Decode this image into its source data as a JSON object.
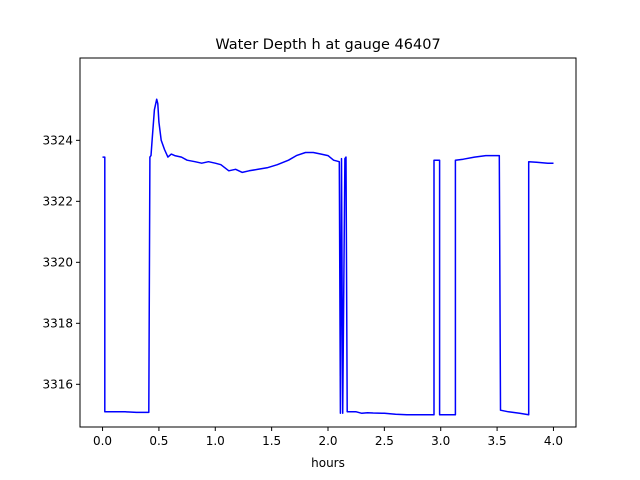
{
  "chart_data": {
    "type": "line",
    "title": "Water Depth h at gauge 46407",
    "xlabel": "hours",
    "ylabel": "",
    "xlim": [
      -0.2,
      4.2
    ],
    "ylim": [
      3314.6,
      3326.7
    ],
    "xticks": [
      0.0,
      0.5,
      1.0,
      1.5,
      2.0,
      2.5,
      3.0,
      3.5,
      4.0
    ],
    "xtick_labels": [
      "0.0",
      "0.5",
      "1.0",
      "1.5",
      "2.0",
      "2.5",
      "3.0",
      "3.5",
      "4.0"
    ],
    "yticks": [
      3316,
      3318,
      3320,
      3322,
      3324
    ],
    "ytick_labels": [
      "3316",
      "3318",
      "3320",
      "3322",
      "3324"
    ],
    "grid": false,
    "legend": "none",
    "series": [
      {
        "color": "#0000ff",
        "x": [
          0.0,
          0.02,
          0.02,
          0.1,
          0.2,
          0.3,
          0.35,
          0.41,
          0.42,
          0.43,
          0.44,
          0.46,
          0.48,
          0.49,
          0.5,
          0.52,
          0.55,
          0.58,
          0.61,
          0.64,
          0.7,
          0.75,
          0.82,
          0.88,
          0.94,
          1.0,
          1.05,
          1.12,
          1.18,
          1.24,
          1.3,
          1.38,
          1.46,
          1.55,
          1.65,
          1.72,
          1.8,
          1.87,
          1.94,
          2.0,
          2.05,
          2.1,
          2.11,
          2.12,
          2.13,
          2.15,
          2.16,
          2.17,
          2.25,
          2.3,
          2.35,
          2.4,
          2.5,
          2.6,
          2.7,
          2.8,
          2.9,
          2.94,
          2.94,
          2.99,
          2.99,
          3.04,
          3.13,
          3.13,
          3.2,
          3.3,
          3.4,
          3.52,
          3.53,
          3.6,
          3.7,
          3.78,
          3.78,
          3.85,
          3.95,
          4.0
        ],
        "y": [
          3323.45,
          3323.45,
          3315.1,
          3315.1,
          3315.1,
          3315.08,
          3315.08,
          3315.08,
          3323.45,
          3323.5,
          3324.0,
          3325.0,
          3325.35,
          3325.2,
          3324.6,
          3324.0,
          3323.7,
          3323.45,
          3323.55,
          3323.5,
          3323.45,
          3323.35,
          3323.3,
          3323.25,
          3323.3,
          3323.25,
          3323.2,
          3323.0,
          3323.05,
          3322.95,
          3323.0,
          3323.05,
          3323.1,
          3323.2,
          3323.35,
          3323.5,
          3323.6,
          3323.6,
          3323.55,
          3323.5,
          3323.35,
          3323.3,
          3315.05,
          3323.4,
          3315.05,
          3323.4,
          3323.45,
          3315.1,
          3315.1,
          3315.05,
          3315.07,
          3315.06,
          3315.05,
          3315.02,
          3315.0,
          3315.0,
          3315.0,
          3315.0,
          3323.35,
          3323.35,
          3315.0,
          3315.0,
          3315.0,
          3323.35,
          3323.38,
          3323.45,
          3323.5,
          3323.5,
          3315.15,
          3315.1,
          3315.05,
          3315.0,
          3323.3,
          3323.28,
          3323.25,
          3323.25
        ]
      }
    ]
  }
}
